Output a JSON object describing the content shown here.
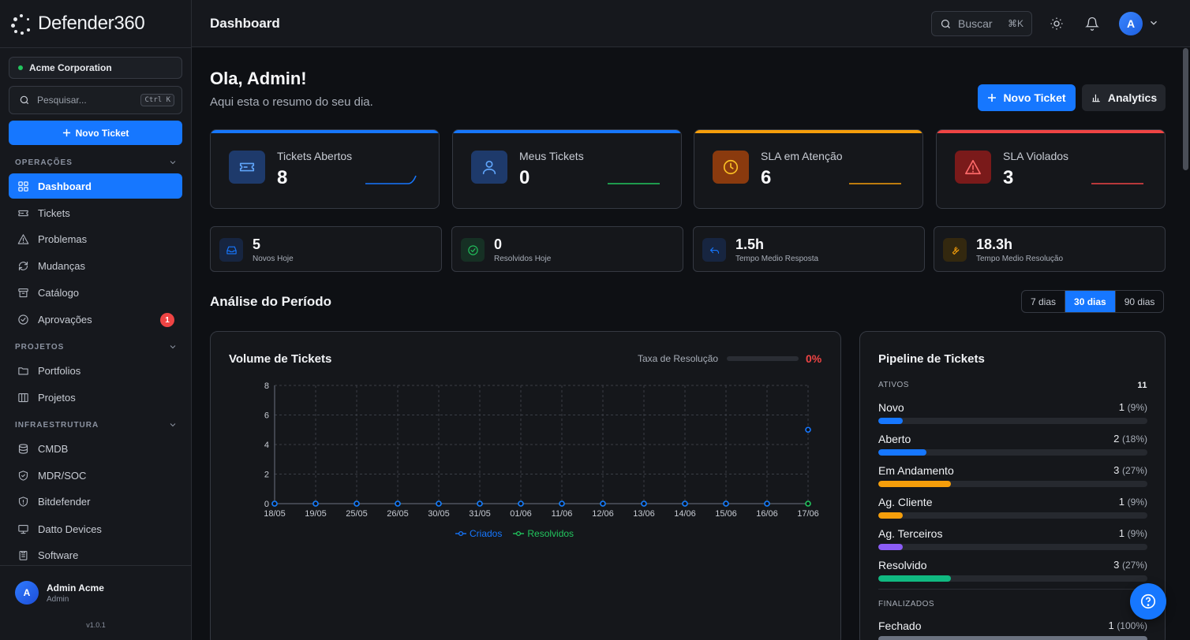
{
  "app": {
    "name": "Defender360",
    "version": "v1.0.1"
  },
  "sidebar": {
    "org": "Acme Corporation",
    "search_placeholder": "Pesquisar...",
    "search_shortcut": "Ctrl K",
    "new_ticket": "Novo Ticket",
    "sections": [
      {
        "title": "OPERAÇÕES",
        "items": [
          {
            "label": "Dashboard",
            "icon": "grid-icon",
            "active": true
          },
          {
            "label": "Tickets",
            "icon": "ticket-icon"
          },
          {
            "label": "Problemas",
            "icon": "warning-icon"
          },
          {
            "label": "Mudanças",
            "icon": "refresh-icon"
          },
          {
            "label": "Catálogo",
            "icon": "archive-icon"
          },
          {
            "label": "Aprovações",
            "icon": "check-circle-icon",
            "badge": "1"
          }
        ]
      },
      {
        "title": "PROJETOS",
        "items": [
          {
            "label": "Portfolios",
            "icon": "folder-icon"
          },
          {
            "label": "Projetos",
            "icon": "columns-icon"
          }
        ]
      },
      {
        "title": "INFRAESTRUTURA",
        "items": [
          {
            "label": "CMDB",
            "icon": "database-icon"
          },
          {
            "label": "MDR/SOC",
            "icon": "shield-check-icon"
          },
          {
            "label": "Bitdefender",
            "icon": "shield-icon"
          },
          {
            "label": "Datto Devices",
            "icon": "monitor-icon"
          },
          {
            "label": "Software",
            "icon": "package-icon"
          }
        ]
      }
    ],
    "user": {
      "initial": "A",
      "name": "Admin Acme",
      "role": "Admin"
    }
  },
  "topbar": {
    "title": "Dashboard",
    "search_placeholder": "Buscar",
    "search_shortcut": "⌘K",
    "avatar": "A"
  },
  "header": {
    "greeting": "Ola, Admin!",
    "subtitle": "Aqui esta o resumo do seu dia.",
    "new_ticket": "Novo Ticket",
    "analytics": "Analytics"
  },
  "kpis": [
    {
      "label": "Tickets Abertos",
      "value": "8",
      "color": "#1677ff",
      "icon_bg": "#1e3a6b",
      "icon": "ticket-icon"
    },
    {
      "label": "Meus Tickets",
      "value": "0",
      "color": "#1677ff",
      "icon_bg": "#1e3a6b",
      "icon": "user-icon"
    },
    {
      "label": "SLA em Atenção",
      "value": "6",
      "color": "#f59e0b",
      "icon_bg": "#8a3a0e",
      "icon": "clock-icon"
    },
    {
      "label": "SLA Violados",
      "value": "3",
      "color": "#ef4444",
      "icon_bg": "#7a1a1a",
      "icon": "alert-triangle-icon"
    }
  ],
  "mini_stats": [
    {
      "value": "5",
      "label": "Novos Hoje",
      "icon": "inbox-icon",
      "color": "#1677ff",
      "bg": "#172540"
    },
    {
      "value": "0",
      "label": "Resolvidos Hoje",
      "icon": "check-circle-icon",
      "color": "#22c55e",
      "bg": "#163024"
    },
    {
      "value": "1.5h",
      "label": "Tempo Medio Resposta",
      "icon": "reply-icon",
      "color": "#1677ff",
      "bg": "#172540"
    },
    {
      "value": "18.3h",
      "label": "Tempo Medio Resolução",
      "icon": "wrench-icon",
      "color": "#f59e0b",
      "bg": "#33280f"
    }
  ],
  "period": {
    "title": "Análise do Período",
    "ranges": [
      "7 dias",
      "30 dias",
      "90 dias"
    ],
    "selected": "30 dias"
  },
  "volume": {
    "title": "Volume de Tickets",
    "rate_label": "Taxa de Resolução",
    "rate_value": "0%",
    "rate_fraction": 0
  },
  "chart_data": {
    "type": "line",
    "title": "Volume de Tickets",
    "categories": [
      "18/05",
      "19/05",
      "25/05",
      "26/05",
      "30/05",
      "31/05",
      "01/06",
      "11/06",
      "12/06",
      "13/06",
      "14/06",
      "15/06",
      "16/06",
      "17/06"
    ],
    "series": [
      {
        "name": "Criados",
        "color": "#1677ff",
        "values": [
          0,
          0,
          0,
          0,
          0,
          0,
          0,
          0,
          0,
          0,
          0,
          0,
          0,
          5
        ]
      },
      {
        "name": "Resolvidos",
        "color": "#22c55e",
        "values": [
          0,
          0,
          0,
          0,
          0,
          0,
          0,
          0,
          0,
          0,
          0,
          0,
          0,
          0
        ]
      }
    ],
    "ylim": [
      0,
      8
    ],
    "yticks": [
      0,
      2,
      4,
      6,
      8
    ],
    "grid": true,
    "legend": "bottom"
  },
  "pipeline": {
    "title": "Pipeline de Tickets",
    "active_label": "ATIVOS",
    "active_total": "11",
    "rows": [
      {
        "label": "Novo",
        "count": "1",
        "pct": "(9%)",
        "fraction": 0.09,
        "color": "#1677ff"
      },
      {
        "label": "Aberto",
        "count": "2",
        "pct": "(18%)",
        "fraction": 0.18,
        "color": "#1677ff"
      },
      {
        "label": "Em Andamento",
        "count": "3",
        "pct": "(27%)",
        "fraction": 0.27,
        "color": "#f59e0b"
      },
      {
        "label": "Ag. Cliente",
        "count": "1",
        "pct": "(9%)",
        "fraction": 0.09,
        "color": "#f59e0b"
      },
      {
        "label": "Ag. Terceiros",
        "count": "1",
        "pct": "(9%)",
        "fraction": 0.09,
        "color": "#8b5cf6"
      },
      {
        "label": "Resolvido",
        "count": "3",
        "pct": "(27%)",
        "fraction": 0.27,
        "color": "#10b981"
      }
    ],
    "finished_label": "FINALIZADOS",
    "finished_rows": [
      {
        "label": "Fechado",
        "count": "1",
        "pct": "(100%)",
        "fraction": 1.0,
        "color": "#6b7280"
      }
    ]
  }
}
